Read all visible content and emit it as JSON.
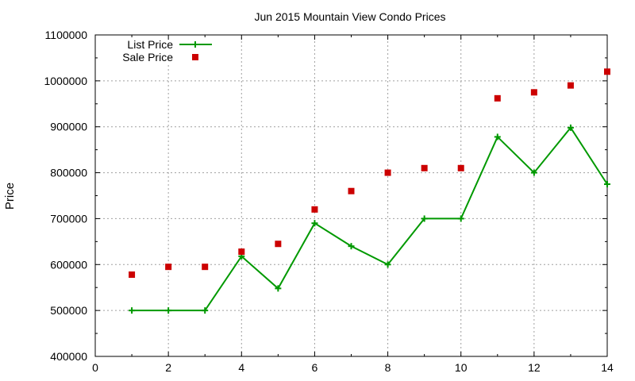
{
  "chart_data": {
    "type": "line",
    "title": "Jun 2015 Mountain View Condo Prices",
    "xlabel": "",
    "ylabel": "Price",
    "xlim": [
      0,
      14
    ],
    "ylim": [
      400000,
      1100000
    ],
    "xticks": [
      "0",
      "2",
      "4",
      "6",
      "8",
      "10",
      "12",
      "14"
    ],
    "yticks": [
      "400000",
      "500000",
      "600000",
      "700000",
      "800000",
      "900000",
      "1000000",
      "1100000"
    ],
    "grid": true,
    "legend_position": "top-left",
    "series": [
      {
        "name": "List Price",
        "style": "line-with-plus-markers",
        "color": "#009900",
        "x": [
          1,
          2,
          3,
          4,
          5,
          6,
          7,
          8,
          9,
          10,
          11,
          12,
          13,
          14
        ],
        "y": [
          500000,
          500000,
          500000,
          618000,
          548000,
          690000,
          640000,
          600000,
          700000,
          700000,
          878000,
          800000,
          898000,
          775000
        ]
      },
      {
        "name": "Sale Price",
        "style": "square-markers",
        "color": "#cc0000",
        "x": [
          1,
          2,
          3,
          4,
          5,
          6,
          7,
          8,
          9,
          10,
          11,
          12,
          13,
          14
        ],
        "y": [
          578000,
          595000,
          595000,
          628000,
          645000,
          720000,
          760000,
          800000,
          810000,
          810000,
          962000,
          975000,
          990000,
          1020000
        ]
      }
    ]
  }
}
